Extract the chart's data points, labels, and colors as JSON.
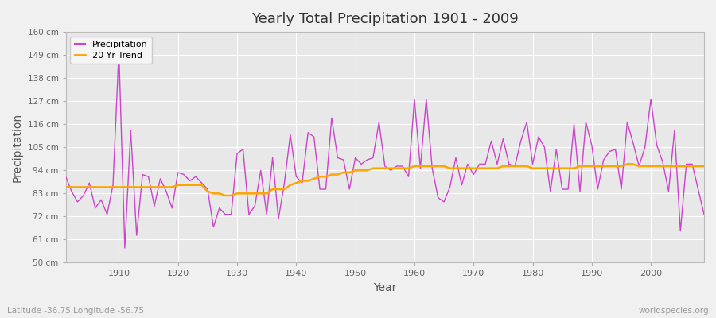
{
  "title": "Yearly Total Precipitation 1901 - 2009",
  "xlabel": "Year",
  "ylabel": "Precipitation",
  "subtitle_left": "Latitude -36.75 Longitude -56.75",
  "subtitle_right": "worldspecies.org",
  "ylim": [
    50,
    160
  ],
  "yticks": [
    50,
    61,
    72,
    83,
    94,
    105,
    116,
    127,
    138,
    149,
    160
  ],
  "ytick_labels": [
    "50 cm",
    "61 cm",
    "72 cm",
    "83 cm",
    "94 cm",
    "105 cm",
    "116 cm",
    "127 cm",
    "138 cm",
    "149 cm",
    "160 cm"
  ],
  "xlim": [
    1901,
    2009
  ],
  "xticks": [
    1910,
    1920,
    1930,
    1940,
    1950,
    1960,
    1970,
    1980,
    1990,
    2000
  ],
  "precip_color": "#cc44cc",
  "trend_color": "#FFA500",
  "fig_bg_color": "#f0f0f0",
  "plot_bg_color": "#e8e8e8",
  "grid_color": "#ffffff",
  "years": [
    1901,
    1902,
    1903,
    1904,
    1905,
    1906,
    1907,
    1908,
    1909,
    1910,
    1911,
    1912,
    1913,
    1914,
    1915,
    1916,
    1917,
    1918,
    1919,
    1920,
    1921,
    1922,
    1923,
    1924,
    1925,
    1926,
    1927,
    1928,
    1929,
    1930,
    1931,
    1932,
    1933,
    1934,
    1935,
    1936,
    1937,
    1938,
    1939,
    1940,
    1941,
    1942,
    1943,
    1944,
    1945,
    1946,
    1947,
    1948,
    1949,
    1950,
    1951,
    1952,
    1953,
    1954,
    1955,
    1956,
    1957,
    1958,
    1959,
    1960,
    1961,
    1962,
    1963,
    1964,
    1965,
    1966,
    1967,
    1968,
    1969,
    1970,
    1971,
    1972,
    1973,
    1974,
    1975,
    1976,
    1977,
    1978,
    1979,
    1980,
    1981,
    1982,
    1983,
    1984,
    1985,
    1986,
    1987,
    1988,
    1989,
    1990,
    1991,
    1992,
    1993,
    1994,
    1995,
    1996,
    1997,
    1998,
    1999,
    2000,
    2001,
    2002,
    2003,
    2004,
    2005,
    2006,
    2007,
    2008,
    2009
  ],
  "precipitation": [
    91,
    84,
    79,
    82,
    88,
    76,
    80,
    73,
    87,
    151,
    57,
    113,
    63,
    92,
    91,
    77,
    90,
    84,
    76,
    93,
    92,
    89,
    91,
    88,
    85,
    67,
    76,
    73,
    73,
    102,
    104,
    73,
    77,
    94,
    73,
    100,
    71,
    88,
    111,
    91,
    88,
    112,
    110,
    85,
    85,
    119,
    100,
    99,
    85,
    100,
    97,
    99,
    100,
    117,
    96,
    94,
    96,
    96,
    91,
    128,
    95,
    128,
    95,
    81,
    79,
    86,
    100,
    87,
    97,
    92,
    97,
    97,
    108,
    97,
    109,
    97,
    96,
    108,
    117,
    97,
    110,
    105,
    84,
    104,
    85,
    85,
    116,
    84,
    117,
    106,
    85,
    99,
    103,
    104,
    85,
    117,
    107,
    96,
    105,
    128,
    106,
    98,
    84,
    113,
    65,
    97,
    97,
    85,
    73
  ],
  "trend": [
    86,
    86,
    86,
    86,
    86,
    86,
    86,
    86,
    86,
    86,
    86,
    86,
    86,
    86,
    86,
    86,
    86,
    86,
    86,
    87,
    87,
    87,
    87,
    87,
    84,
    83,
    83,
    82,
    82,
    83,
    83,
    83,
    83,
    83,
    83,
    85,
    85,
    85,
    87,
    88,
    89,
    89,
    90,
    91,
    91,
    92,
    92,
    93,
    93,
    94,
    94,
    94,
    95,
    95,
    95,
    95,
    95,
    95,
    95,
    96,
    96,
    96,
    96,
    96,
    96,
    95,
    95,
    95,
    95,
    95,
    95,
    95,
    95,
    95,
    96,
    96,
    96,
    96,
    96,
    95,
    95,
    95,
    95,
    95,
    95,
    95,
    95,
    96,
    96,
    96,
    96,
    96,
    96,
    96,
    96,
    97,
    97,
    96,
    96,
    96,
    96,
    96,
    96,
    96,
    96,
    96,
    96,
    96,
    96
  ]
}
